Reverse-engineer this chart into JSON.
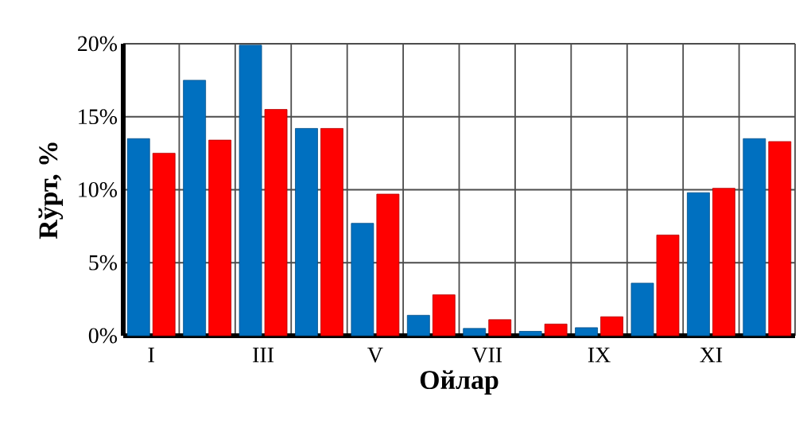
{
  "chart_data": {
    "type": "bar",
    "xlabel": "Ойлар",
    "ylabel": "Rўрт, %",
    "categories": [
      "I",
      null,
      "III",
      null,
      "V",
      null,
      "VII",
      null,
      "IX",
      null,
      "XI",
      null
    ],
    "series": [
      {
        "color": "#0070c0",
        "values": [
          13.5,
          17.5,
          19.9,
          14.2,
          7.7,
          1.4,
          0.5,
          0.3,
          0.55,
          3.6,
          9.8,
          13.5
        ]
      },
      {
        "color": "#ff0000",
        "values": [
          12.5,
          13.4,
          15.5,
          14.2,
          9.7,
          2.8,
          1.1,
          0.8,
          1.3,
          6.9,
          10.1,
          13.3
        ]
      }
    ],
    "ylim": [
      0,
      20
    ],
    "yticks": [
      {
        "value": 0,
        "label": "0%"
      },
      {
        "value": 5,
        "label": "5%"
      },
      {
        "value": 10,
        "label": "10%"
      },
      {
        "value": 15,
        "label": "15%"
      },
      {
        "value": 20,
        "label": "20%"
      }
    ],
    "grid": true
  }
}
